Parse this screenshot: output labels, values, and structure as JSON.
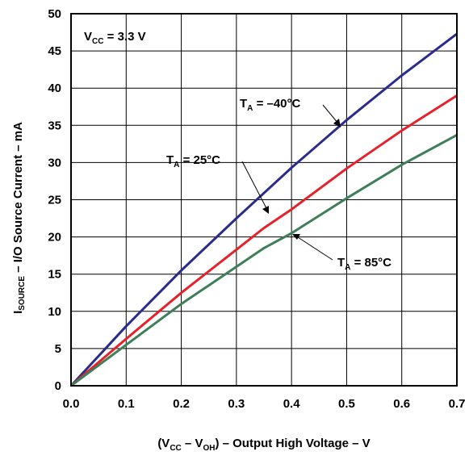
{
  "chart_data": {
    "type": "line",
    "title": "",
    "xlabel": "(VCC – VOH) – Output High Voltage – V",
    "ylabel": "ISOURCE – I/O Source Current – mA",
    "xlim": [
      0,
      0.7
    ],
    "ylim": [
      0,
      50
    ],
    "x_ticks": [
      "0.0",
      "0.1",
      "0.2",
      "0.3",
      "0.4",
      "0.5",
      "0.6",
      "0.7"
    ],
    "y_ticks": [
      "0",
      "5",
      "10",
      "15",
      "20",
      "25",
      "30",
      "35",
      "40",
      "45",
      "50"
    ],
    "grid": true,
    "condition_label": "VCC = 3.3 V",
    "series": [
      {
        "name": "TA = –40°C",
        "color": "#2b2b8c",
        "x": [
          0.0,
          0.1,
          0.2,
          0.3,
          0.4,
          0.5,
          0.6,
          0.7
        ],
        "y": [
          0.0,
          8.0,
          15.5,
          22.5,
          29.3,
          35.7,
          41.7,
          47.3
        ]
      },
      {
        "name": "TA = 25°C",
        "color": "#e8202a",
        "x": [
          0.0,
          0.1,
          0.2,
          0.3,
          0.35,
          0.4,
          0.5,
          0.6,
          0.7
        ],
        "y": [
          0.0,
          6.3,
          12.5,
          18.3,
          21.2,
          23.7,
          29.2,
          34.3,
          39.0
        ]
      },
      {
        "name": "TA = 85°C",
        "color": "#3e7f5a",
        "x": [
          0.0,
          0.1,
          0.2,
          0.3,
          0.35,
          0.4,
          0.5,
          0.6,
          0.7
        ],
        "y": [
          0.0,
          5.5,
          11.0,
          16.0,
          18.5,
          20.5,
          25.2,
          29.7,
          33.7
        ]
      }
    ]
  }
}
